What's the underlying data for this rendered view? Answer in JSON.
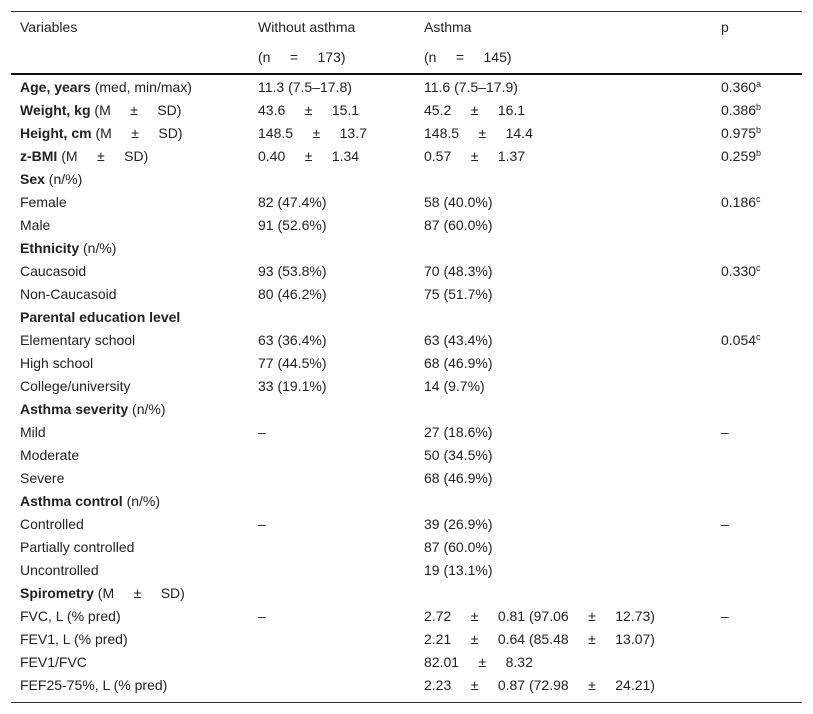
{
  "header": {
    "variables": "Variables",
    "without": "Without asthma",
    "without_n": "(n     =     173)",
    "asthma": "Asthma",
    "asthma_n": "(n     =     145)",
    "p": "p"
  },
  "rows": [
    {
      "bold": "Age, years",
      "label": " (med, min/max)",
      "c1": "11.3 (7.5–17.8)",
      "c2": "11.6 (7.5–17.9)",
      "p": "0.360",
      "sup": "a"
    },
    {
      "bold": "Weight, kg",
      "label": " (M     ±     SD)",
      "c1": "43.6     ±     15.1",
      "c2": "45.2     ±     16.1",
      "p": "0.386",
      "sup": "b"
    },
    {
      "bold": "Height, cm",
      "label": " (M     ±     SD)",
      "c1": "148.5     ±     13.7",
      "c2": "148.5     ±     14.4",
      "p": "0.975",
      "sup": "b"
    },
    {
      "bold": "z-BMI",
      "label": " (M     ±     SD)",
      "c1": "0.40     ±     1.34",
      "c2": "0.57     ±     1.37",
      "p": "0.259",
      "sup": "b"
    },
    {
      "bold": "Sex",
      "label": " (n/%)",
      "c1": "",
      "c2": "",
      "p": "",
      "sup": ""
    },
    {
      "bold": "",
      "label": "Female",
      "c1": "82 (47.4%)",
      "c2": "58 (40.0%)",
      "p": "0.186",
      "sup": "c"
    },
    {
      "bold": "",
      "label": "Male",
      "c1": "91 (52.6%)",
      "c2": "87 (60.0%)",
      "p": "",
      "sup": ""
    },
    {
      "bold": "Ethnicity",
      "label": " (n/%)",
      "c1": "",
      "c2": "",
      "p": "",
      "sup": ""
    },
    {
      "bold": "",
      "label": "Caucasoid",
      "c1": "93 (53.8%)",
      "c2": "70 (48.3%)",
      "p": "0.330",
      "sup": "c"
    },
    {
      "bold": "",
      "label": "Non-Caucasoid",
      "c1": "80 (46.2%)",
      "c2": "75 (51.7%)",
      "p": "",
      "sup": ""
    },
    {
      "bold": "Parental education level",
      "label": "",
      "c1": "",
      "c2": "",
      "p": "",
      "sup": ""
    },
    {
      "bold": "",
      "label": "Elementary school",
      "c1": "63 (36.4%)",
      "c2": "63 (43.4%)",
      "p": "0.054",
      "sup": "c"
    },
    {
      "bold": "",
      "label": "High school",
      "c1": "77 (44.5%)",
      "c2": "68 (46.9%)",
      "p": "",
      "sup": ""
    },
    {
      "bold": "",
      "label": "College/university",
      "c1": "33 (19.1%)",
      "c2": "14 (9.7%)",
      "p": "",
      "sup": ""
    },
    {
      "bold": "Asthma severity",
      "label": " (n/%)",
      "c1": "",
      "c2": "",
      "p": "",
      "sup": ""
    },
    {
      "bold": "",
      "label": "Mild",
      "c1": "–",
      "c2": "27 (18.6%)",
      "p": "–",
      "sup": ""
    },
    {
      "bold": "",
      "label": "Moderate",
      "c1": "",
      "c2": "50 (34.5%)",
      "p": "",
      "sup": ""
    },
    {
      "bold": "",
      "label": "Severe",
      "c1": "",
      "c2": "68 (46.9%)",
      "p": "",
      "sup": ""
    },
    {
      "bold": "Asthma control",
      "label": " (n/%)",
      "c1": "",
      "c2": "",
      "p": "",
      "sup": ""
    },
    {
      "bold": "",
      "label": "Controlled",
      "c1": "–",
      "c2": "39 (26.9%)",
      "p": "–",
      "sup": ""
    },
    {
      "bold": "",
      "label": "Partially controlled",
      "c1": "",
      "c2": "87 (60.0%)",
      "p": "",
      "sup": ""
    },
    {
      "bold": "",
      "label": "Uncontrolled",
      "c1": "",
      "c2": "19 (13.1%)",
      "p": "",
      "sup": ""
    },
    {
      "bold": "Spirometry",
      "label": " (M     ±     SD)",
      "c1": "",
      "c2": "",
      "p": "",
      "sup": ""
    },
    {
      "bold": "",
      "label": "FVC, L (% pred)",
      "c1": "–",
      "c2": "2.72     ±     0.81 (97.06     ±     12.73)",
      "p": "–",
      "sup": ""
    },
    {
      "bold": "",
      "label": "FEV1, L (% pred)",
      "c1": "",
      "c2": "2.21     ±     0.64 (85.48     ±     13.07)",
      "p": "",
      "sup": ""
    },
    {
      "bold": "",
      "label": "FEV1/FVC",
      "c1": "",
      "c2": "82.01     ±     8.32",
      "p": "",
      "sup": ""
    },
    {
      "bold": "",
      "label": "FEF25-75%, L (% pred)",
      "c1": "",
      "c2": "2.23     ±     0.87 (72.98     ±     24.21)",
      "p": "",
      "sup": ""
    }
  ]
}
